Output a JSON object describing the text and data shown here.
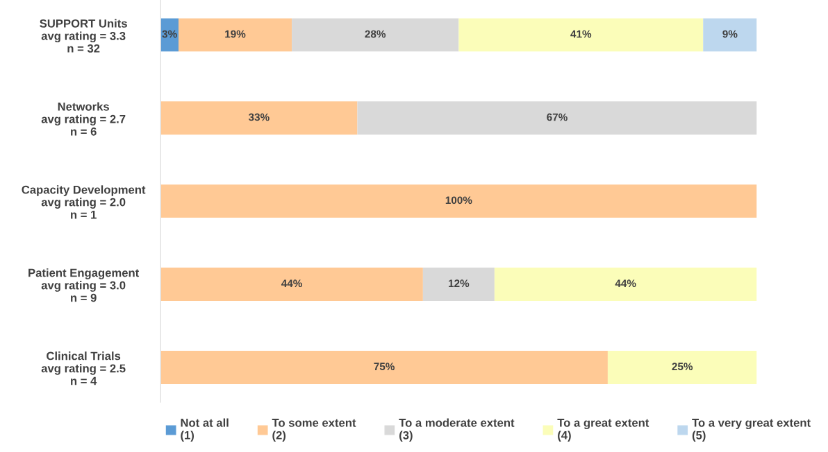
{
  "chart_data": {
    "type": "bar",
    "orientation": "horizontal",
    "stacked": true,
    "tick_labels": "y",
    "grid": false,
    "legend": "bottom",
    "categories": [
      "SUPPORT Units\navg rating = 3.3\nn = 32",
      "Networks\navg rating = 2.7\nn = 6",
      "Capacity Development\navg rating = 2.0\nn = 1",
      "Patient Engagement\navg rating = 3.0\nn = 9",
      "Clinical Trials\navg rating = 2.5\nn = 4"
    ],
    "series": [
      {
        "name": "Not at all\n(1)",
        "color": "#5b9bd5",
        "values": [
          3,
          null,
          null,
          null,
          null
        ],
        "value_labels": [
          "3%",
          null,
          null,
          null,
          null
        ]
      },
      {
        "name": "To some extent\n(2)",
        "color": "#ffc995",
        "values": [
          19,
          33,
          100,
          44,
          75
        ],
        "value_labels": [
          "19%",
          "33%",
          "100%",
          "44%",
          "75%"
        ]
      },
      {
        "name": "To a moderate extent\n(3)",
        "color": "#d9d9d9",
        "values": [
          28,
          67,
          null,
          12,
          null
        ],
        "value_labels": [
          "28%",
          "67%",
          null,
          "12%",
          null
        ]
      },
      {
        "name": "To a great extent\n(4)",
        "color": "#fbfdb9",
        "values": [
          41,
          null,
          null,
          44,
          25
        ],
        "value_labels": [
          "41%",
          null,
          null,
          "44%",
          "25%"
        ]
      },
      {
        "name": "To a very great extent\n(5)",
        "color": "#bdd7ee",
        "values": [
          9,
          null,
          null,
          null,
          null
        ],
        "value_labels": [
          "9%",
          null,
          null,
          null,
          null
        ]
      }
    ]
  }
}
